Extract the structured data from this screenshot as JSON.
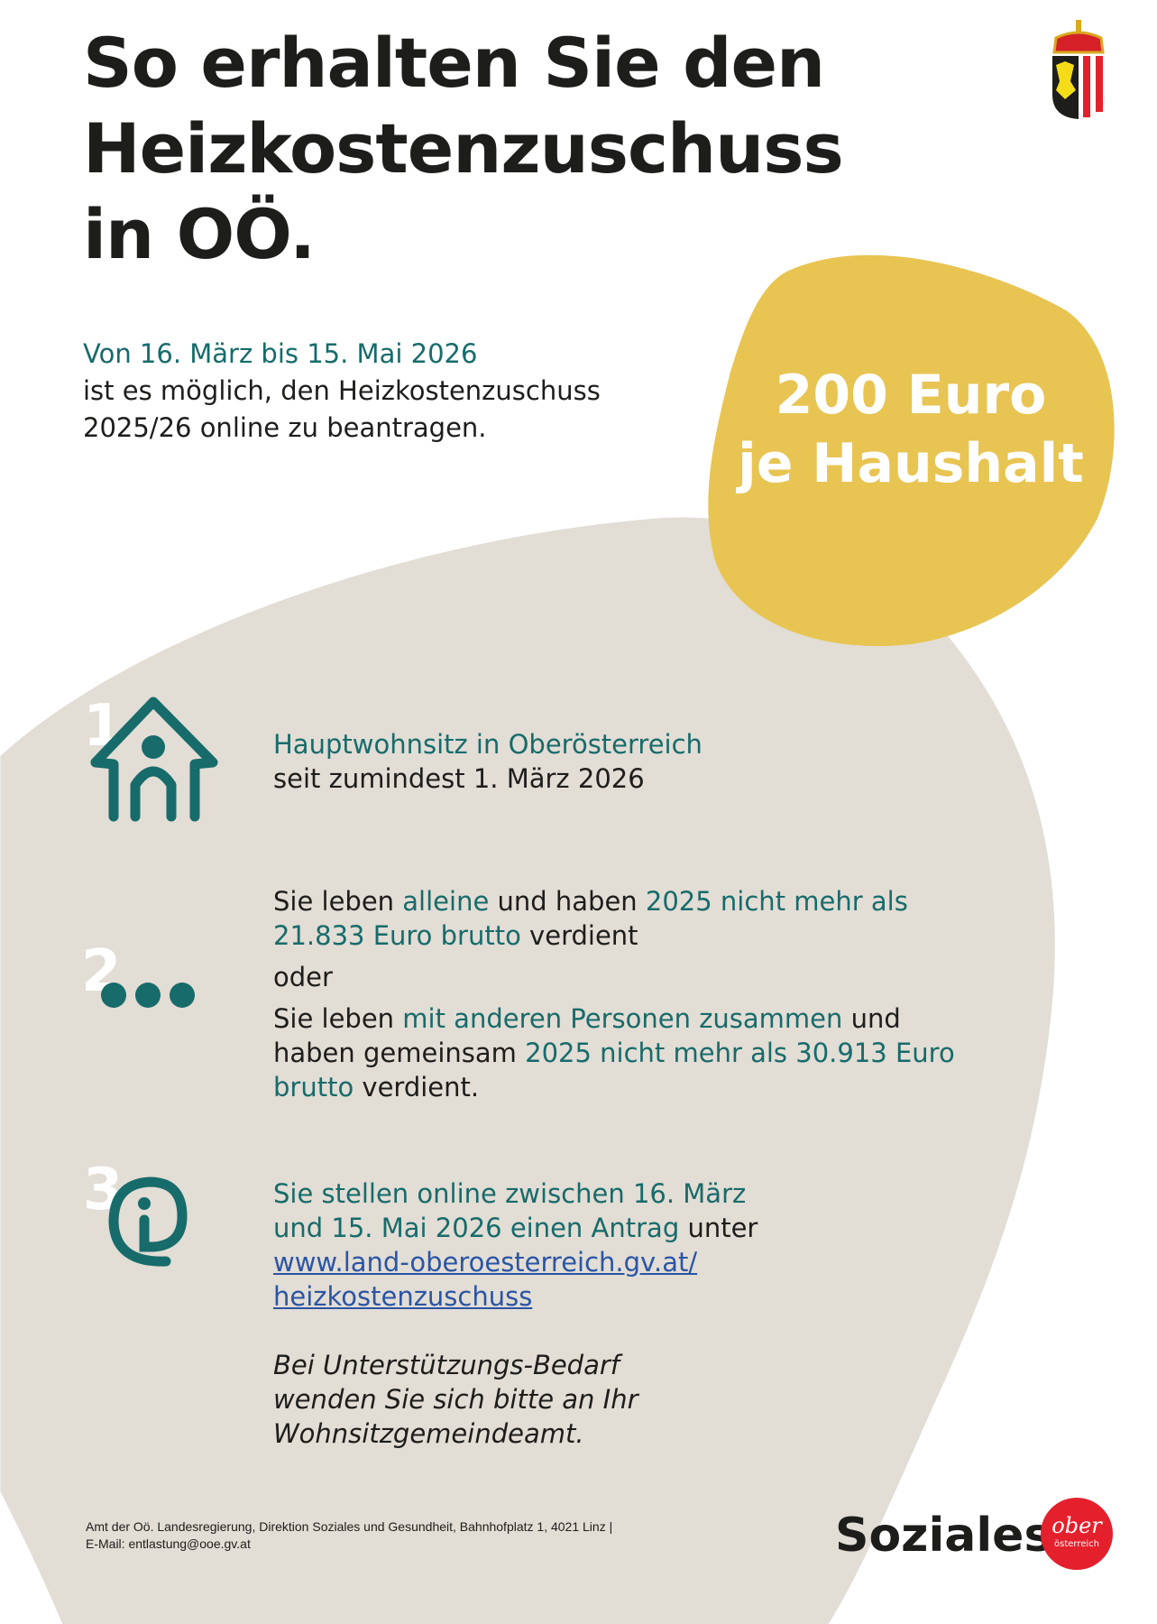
{
  "title": {
    "line1": "So erhalten Sie den",
    "line2": "Heizkostenzuschuss",
    "line3": "in OÖ."
  },
  "intro": {
    "period": "Von 16. März bis 15. Mai 2026",
    "line2": "ist es möglich, den Heizkostenzuschuss",
    "line3": "2025/26 online zu beantragen."
  },
  "badge": {
    "line1": "200 Euro",
    "line2": "je Haushalt"
  },
  "items": [
    {
      "number": "1",
      "icon": "house-person-icon",
      "highlight": "Hauptwohnsitz in Oberösterreich",
      "text": "seit zumindest 1. März 2026"
    },
    {
      "number": "2",
      "icon": "dots-icon",
      "a1": "Sie leben ",
      "a2": "alleine",
      "a3": " und haben ",
      "a4": "2025 nicht mehr als 21.833 Euro brutto",
      "a5": " verdient",
      "or": "oder",
      "b1": "Sie leben ",
      "b2": "mit anderen Personen zusammen",
      "b3": " und haben gemeinsam ",
      "b4": "2025 nicht mehr als 30.913 Euro brutto",
      "b5": " verdient."
    },
    {
      "number": "3",
      "icon": "info-at-icon",
      "highlight": "Sie stellen online zwischen 16. März und 15. Mai 2026 einen Antrag",
      "text": " unter",
      "link1": "www.land-oberoesterreich.gv.at/",
      "link2": "heizkostenzuschuss",
      "support": "Bei Unterstützungs-Bedarf wenden Sie sich bitte an Ihr Wohnsitzgemeindeamt."
    }
  ],
  "footer": {
    "line1": "Amt der Oö. Landesregierung, Direktion Soziales und Gesundheit, Bahnhofplatz 1, 4021 Linz |",
    "line2": "E-Mail: entlastung@ooe.gv.at"
  },
  "brand": {
    "label": "Soziales",
    "logo_top": "ober",
    "logo_bottom": "österreich"
  },
  "colors": {
    "teal": "#176b6b",
    "beige": "#e2ddd5",
    "yellow": "#e8c452",
    "link": "#2a55a5",
    "red": "#e4202c"
  }
}
